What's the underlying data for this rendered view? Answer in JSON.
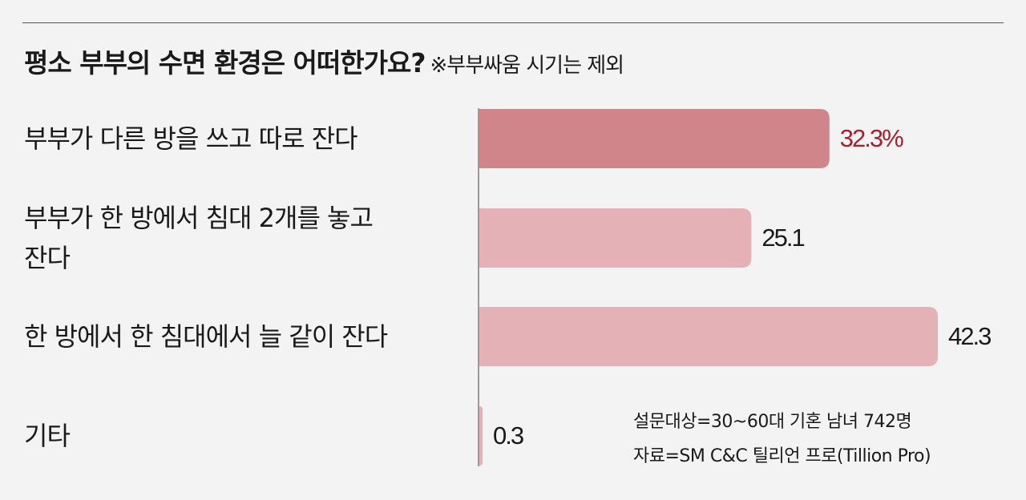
{
  "chart_data": {
    "type": "hbar",
    "title": "평소 부부의 수면 환경은 어떠한가요?",
    "subtitle": "※부부싸움 시기는 제외",
    "categories": [
      "부부가 다른 방을 쓰고 따로 잔다",
      "부부가 한 방에서 침대 2개를 놓고 잔다",
      "한 방에서 한 침대에서 늘 같이 잔다",
      "기타"
    ],
    "values": [
      32.3,
      25.1,
      42.3,
      0.3
    ],
    "value_labels": [
      "32.3%",
      "25.1",
      "42.3",
      "0.3"
    ],
    "colors": [
      "#d0858b",
      "#e4b2b6",
      "#e4b2b6",
      "#e4b2b6"
    ],
    "value_label_colors": [
      "#a51f2c",
      "#1a1a1a",
      "#1a1a1a",
      "#1a1a1a"
    ],
    "notes": [
      "설문대상=30~60대 기혼 남녀 742명",
      "자료=SM C&C 틸리언 프로(Tillion Pro)"
    ]
  }
}
